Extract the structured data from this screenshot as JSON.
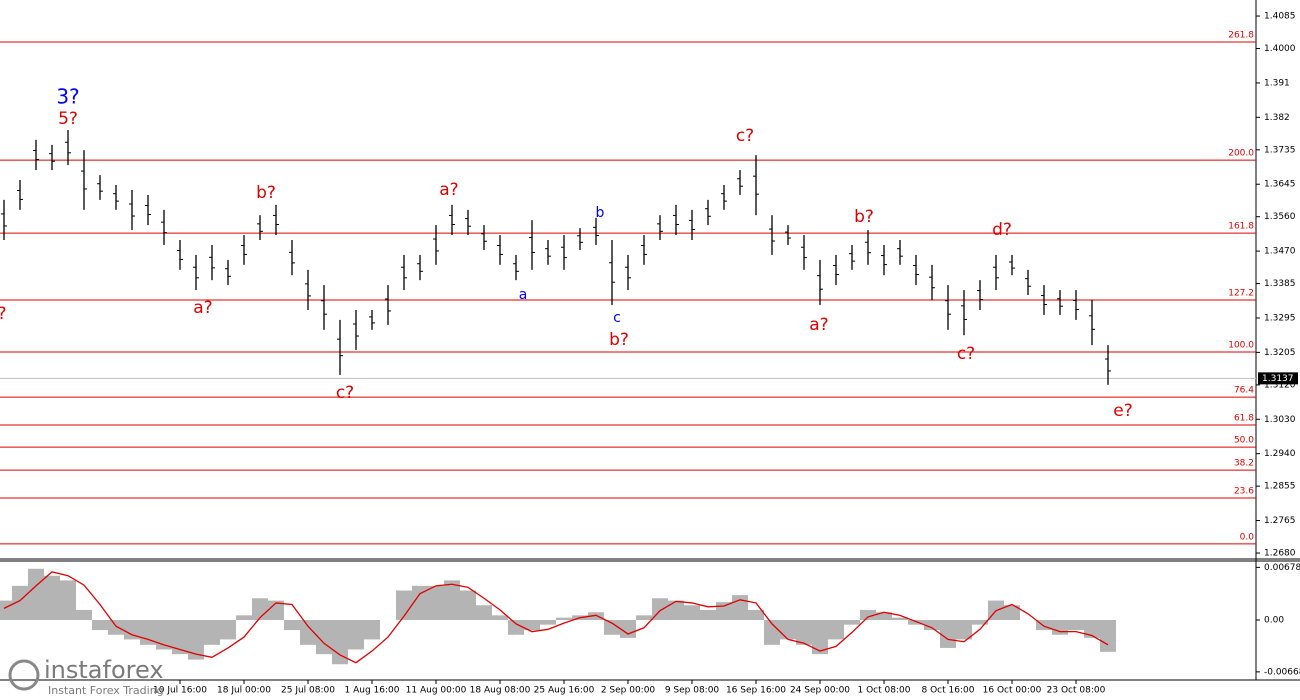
{
  "chart_data": [
    {
      "type": "hilo",
      "color": "#000000",
      "level_color": "#dd0000",
      "ylim": [
        1.2667,
        1.4127
      ],
      "yticks": [
        1.4085,
        {
          "value": 1.4,
          "label": "1.4000"
        },
        1.391,
        1.382,
        1.3735,
        1.3645,
        {
          "value": 1.356,
          "label": "1.3560"
        },
        {
          "value": 1.347,
          "label": "1.3470"
        },
        1.3385,
        1.3295,
        1.3205,
        {
          "value": 1.312,
          "label": "1.3120"
        },
        {
          "value": 1.303,
          "label": "1.3030"
        },
        {
          "value": 1.294,
          "label": "1.2940"
        },
        1.2855,
        1.2765,
        {
          "value": 1.268,
          "label": "1.2680"
        }
      ],
      "categories": [
        null,
        null,
        null,
        null,
        null,
        null,
        null,
        null,
        null,
        null,
        null,
        "10 Jul 16:00",
        null,
        null,
        null,
        "18 Jul 00:00",
        null,
        null,
        null,
        "25 Jul 08:00",
        null,
        null,
        null,
        "1 Aug 16:00",
        null,
        null,
        null,
        "11 Aug 00:00",
        null,
        null,
        null,
        "18 Aug 08:00",
        null,
        null,
        null,
        "25 Aug 16:00",
        null,
        null,
        null,
        "2 Sep 00:00",
        null,
        null,
        null,
        "9 Sep 08:00",
        null,
        null,
        null,
        "16 Sep 16:00",
        null,
        null,
        null,
        "24 Sep 00:00",
        null,
        null,
        null,
        "1 Oct 08:00",
        null,
        null,
        null,
        "8 Oct 16:00",
        null,
        null,
        null,
        "16 Oct 00:00",
        null,
        null,
        null,
        "23 Oct 08:00",
        null,
        null
      ],
      "high": [
        1.3604,
        1.3656,
        1.3761,
        1.3748,
        1.3787,
        1.3734,
        1.3669,
        1.3643,
        1.363,
        1.3617,
        1.3578,
        1.3499,
        1.346,
        1.3486,
        1.3447,
        1.3512,
        1.3564,
        1.3591,
        1.3499,
        1.3421,
        1.3381,
        1.329,
        1.3316,
        1.3316,
        1.3381,
        1.346,
        1.346,
        1.3538,
        1.3591,
        1.3578,
        1.3538,
        1.3512,
        1.346,
        1.3551,
        1.3499,
        1.3512,
        1.353,
        1.3557,
        1.3499,
        1.346,
        1.3512,
        1.3564,
        1.3591,
        1.3578,
        1.3604,
        1.3643,
        1.3682,
        1.3721,
        1.3564,
        1.3538,
        1.3512,
        1.3447,
        1.346,
        1.3486,
        1.3525,
        1.3486,
        1.3499,
        1.346,
        1.3434,
        1.3381,
        1.3368,
        1.3394,
        1.346,
        1.346,
        1.3421,
        1.3381,
        1.3368,
        1.3368,
        1.3342,
        1.3224
      ],
      "low": [
        1.3499,
        1.3578,
        1.3682,
        1.3682,
        1.3695,
        1.3578,
        1.3604,
        1.3578,
        1.3525,
        1.3538,
        1.3486,
        1.3421,
        1.3368,
        1.3394,
        1.3381,
        1.3434,
        1.3499,
        1.3512,
        1.3407,
        1.3316,
        1.3264,
        1.3146,
        1.3211,
        1.3264,
        1.3277,
        1.3368,
        1.3394,
        1.3434,
        1.3512,
        1.3512,
        1.3473,
        1.3434,
        1.3394,
        1.3421,
        1.3434,
        1.3421,
        1.3473,
        1.3486,
        1.3329,
        1.3368,
        1.3434,
        1.3499,
        1.3512,
        1.3499,
        1.3538,
        1.3578,
        1.3617,
        1.3564,
        1.346,
        1.3486,
        1.3421,
        1.3329,
        1.3381,
        1.3421,
        1.3434,
        1.3407,
        1.3434,
        1.3381,
        1.3342,
        1.3264,
        1.325,
        1.3316,
        1.3368,
        1.3407,
        1.3355,
        1.3303,
        1.3303,
        1.329,
        1.3224,
        1.312
      ],
      "last_price": {
        "value": 1.3137,
        "label": "1.3137"
      },
      "levels": [
        {
          "label": "261.8",
          "value": 1.4017
        },
        {
          "label": "200.0",
          "value": 1.3708
        },
        {
          "label": "161.8",
          "value": 1.3517
        },
        {
          "label": "127.2",
          "value": 1.3342
        },
        {
          "label": "100.0",
          "value": 1.3206
        },
        {
          "label": "76.4",
          "value": 1.3088
        },
        {
          "label": "61.8",
          "value": 1.3015
        },
        {
          "label": "50.0",
          "value": 1.2957
        },
        {
          "label": "38.2",
          "value": 1.2897
        },
        {
          "label": "23.6",
          "value": 1.2824
        },
        {
          "label": "0.0",
          "value": 1.2704
        }
      ],
      "annotations": [
        {
          "text": "3?",
          "color": "#0000ff"
        },
        {
          "text": "5?",
          "color": "#e00000"
        },
        {
          "text": "?",
          "color": "#e00000"
        },
        {
          "text": "a?",
          "color": "#e00000"
        },
        {
          "text": "b?",
          "color": "#e00000"
        },
        {
          "text": "c?",
          "color": "#e00000"
        },
        {
          "text": "a?",
          "color": "#e00000"
        },
        {
          "text": "a",
          "color": "#0000ff"
        },
        {
          "text": "b",
          "color": "#0000ff"
        },
        {
          "text": "c",
          "color": "#0000ff"
        },
        {
          "text": "b?",
          "color": "#e00000"
        },
        {
          "text": "c?",
          "color": "#e00000"
        },
        {
          "text": "a?",
          "color": "#e00000"
        },
        {
          "text": "b?",
          "color": "#e00000"
        },
        {
          "text": "c?",
          "color": "#e00000"
        },
        {
          "text": "d?",
          "color": "#e00000"
        },
        {
          "text": "e?",
          "color": "#e00000"
        }
      ]
    },
    {
      "type": "bar",
      "color": "#b4b4b4",
      "signal_color": "#e00000",
      "ylim": [
        -0.0076,
        0.0076
      ],
      "yticks": [
        0.00678,
        {
          "value": 0,
          "label": "0.00"
        },
        -0.00668
      ],
      "values": [
        0.0025,
        0.0044,
        0.0066,
        0.0057,
        0.0051,
        0.0013,
        -0.0013,
        -0.0019,
        -0.0025,
        -0.0032,
        -0.0038,
        -0.0044,
        -0.0051,
        -0.0032,
        -0.0025,
        0.0006,
        0.0028,
        0.0025,
        -0.0013,
        -0.0032,
        -0.0044,
        -0.0057,
        -0.0038,
        -0.0025,
        0,
        0.0038,
        0.0044,
        0.0044,
        0.0051,
        0.0038,
        0.0019,
        0.0006,
        -0.0019,
        -0.0013,
        -0.0006,
        0.0003,
        0.0006,
        0.001,
        -0.0019,
        -0.0023,
        0.0006,
        0.0028,
        0.0025,
        0.0019,
        0.0013,
        0.0023,
        0.0032,
        0.0013,
        -0.0032,
        -0.0025,
        -0.0032,
        -0.0044,
        -0.0025,
        -0.0006,
        0.0013,
        0.001,
        0.0003,
        -0.0006,
        -0.0013,
        -0.0036,
        -0.0025,
        -0.0006,
        0.0025,
        0.0019,
        0,
        -0.0013,
        -0.0019,
        -0.0013,
        -0.0023,
        -0.0041
      ],
      "signal": [
        0.0015,
        0.0025,
        0.0044,
        0.0062,
        0.0057,
        0.0045,
        0.002,
        -0.0008,
        -0.0019,
        -0.0025,
        -0.0032,
        -0.0038,
        -0.0044,
        -0.0048,
        -0.0036,
        -0.0022,
        0.0003,
        0.0022,
        0.002,
        -0.0008,
        -0.003,
        -0.0045,
        -0.0055,
        -0.004,
        -0.0022,
        0.0005,
        0.0034,
        0.0044,
        0.0046,
        0.0042,
        0.0028,
        0.0013,
        -0.0005,
        -0.0015,
        -0.0012,
        -0.0004,
        0.0003,
        0.0006,
        -0.0004,
        -0.0018,
        -0.001,
        0.0012,
        0.0024,
        0.0022,
        0.0017,
        0.0018,
        0.0026,
        0.0022,
        -0.0005,
        -0.0025,
        -0.003,
        -0.004,
        -0.0034,
        -0.0016,
        0.0004,
        0.001,
        0.0006,
        -0.0002,
        -0.001,
        -0.0025,
        -0.0028,
        -0.0012,
        0.0012,
        0.002,
        0.0008,
        -0.0008,
        -0.0015,
        -0.0015,
        -0.002,
        -0.0032
      ]
    }
  ],
  "watermark": {
    "title": "instaforex",
    "subtitle": "Instant Forex Trading"
  }
}
